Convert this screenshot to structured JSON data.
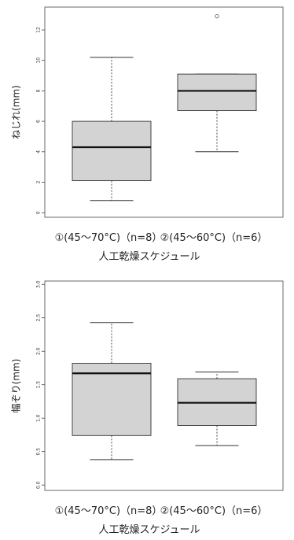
{
  "chart_data": [
    {
      "type": "boxplot",
      "ylabel": "ねじれ(mm)",
      "xlabel": "人工乾燥スケジュール",
      "ylim": [
        -0.3,
        13.5
      ],
      "yticks": [
        "0",
        "2",
        "4",
        "6",
        "8",
        "10",
        "12"
      ],
      "categories": [
        "①(45〜70°C)（n=8）",
        "②(45〜60°C)（n=6）"
      ],
      "boxes": [
        {
          "min": 0.8,
          "q1": 2.1,
          "median": 4.3,
          "q3": 6.0,
          "max": 10.2,
          "outliers": []
        },
        {
          "min": 4.0,
          "q1": 6.7,
          "median": 8.0,
          "q3": 9.1,
          "max": 9.1,
          "outliers": [
            12.9
          ]
        }
      ],
      "fill": "#d3d3d3"
    },
    {
      "type": "boxplot",
      "ylabel": "幅ぞり(mm)",
      "xlabel": "人工乾燥スケジュール",
      "ylim": [
        -0.08,
        3.05
      ],
      "yticks": [
        "0.0",
        "0.5",
        "1.0",
        "1.5",
        "2.0",
        "2.5",
        "3.0"
      ],
      "categories": [
        "①(45〜70°C)（n=8）",
        "②(45〜60°C)（n=6）"
      ],
      "boxes": [
        {
          "min": 0.38,
          "q1": 0.74,
          "median": 1.67,
          "q3": 1.82,
          "max": 2.43,
          "outliers": []
        },
        {
          "min": 0.59,
          "q1": 0.89,
          "median": 1.23,
          "q3": 1.59,
          "max": 1.69,
          "outliers": []
        }
      ],
      "fill": "#d3d3d3"
    }
  ]
}
